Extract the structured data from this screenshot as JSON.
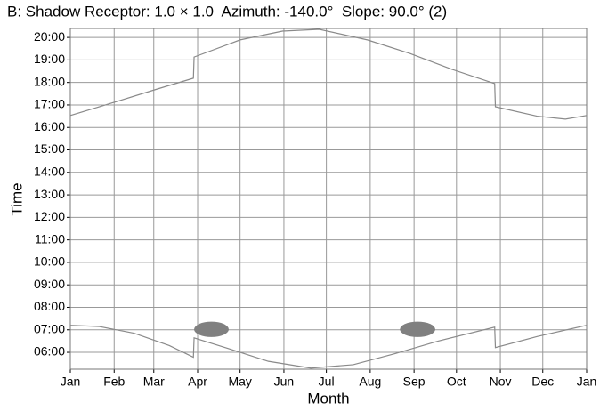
{
  "chart_data": {
    "type": "line",
    "title": "B: Shadow Receptor: 1.0 × 1.0  Azimuth: -140.0°  Slope: 90.0° (2)",
    "xlabel": "Month",
    "ylabel": "Time",
    "xlim": [
      0,
      365
    ],
    "xticks": [
      {
        "value": 0,
        "label": "Jan"
      },
      {
        "value": 31,
        "label": "Feb"
      },
      {
        "value": 59,
        "label": "Mar"
      },
      {
        "value": 90,
        "label": "Apr"
      },
      {
        "value": 120,
        "label": "May"
      },
      {
        "value": 151,
        "label": "Jun"
      },
      {
        "value": 181,
        "label": "Jul"
      },
      {
        "value": 212,
        "label": "Aug"
      },
      {
        "value": 243,
        "label": "Sep"
      },
      {
        "value": 273,
        "label": "Oct"
      },
      {
        "value": 304,
        "label": "Nov"
      },
      {
        "value": 334,
        "label": "Dec"
      },
      {
        "value": 365,
        "label": "Jan"
      }
    ],
    "ylim": [
      5.25,
      20.4
    ],
    "yticks": [
      {
        "value": 6,
        "label": "06:00"
      },
      {
        "value": 7,
        "label": "07:00"
      },
      {
        "value": 8,
        "label": "08:00"
      },
      {
        "value": 9,
        "label": "09:00"
      },
      {
        "value": 10,
        "label": "10:00"
      },
      {
        "value": 11,
        "label": "11:00"
      },
      {
        "value": 12,
        "label": "12:00"
      },
      {
        "value": 13,
        "label": "13:00"
      },
      {
        "value": 14,
        "label": "14:00"
      },
      {
        "value": 15,
        "label": "15:00"
      },
      {
        "value": 16,
        "label": "16:00"
      },
      {
        "value": 17,
        "label": "17:00"
      },
      {
        "value": 18,
        "label": "18:00"
      },
      {
        "value": 19,
        "label": "19:00"
      },
      {
        "value": 20,
        "label": "20:00"
      }
    ],
    "grid": true,
    "series": [
      {
        "color": "#8a8a8a",
        "x": [
          0,
          30,
          60,
          87,
          87.5,
          120,
          150,
          176,
          210,
          240,
          270,
          300,
          300.5,
          330,
          350,
          365
        ],
        "values": [
          16.53,
          17.1,
          17.68,
          18.19,
          19.13,
          19.89,
          20.28,
          20.36,
          19.89,
          19.29,
          18.58,
          17.95,
          16.92,
          16.5,
          16.37,
          16.53
        ]
      },
      {
        "color": "#8a8a8a",
        "x": [
          0,
          20,
          45,
          70,
          87,
          87.5,
          110,
          140,
          170,
          200,
          230,
          260,
          300,
          300.5,
          330,
          365
        ],
        "values": [
          7.2,
          7.15,
          6.85,
          6.3,
          5.78,
          6.64,
          6.2,
          5.6,
          5.3,
          5.45,
          5.95,
          6.5,
          7.12,
          6.21,
          6.7,
          7.2
        ]
      }
    ],
    "shadow_color": "#808080",
    "shadow_periods": [
      {
        "start": 87.5,
        "end": 112,
        "from": 6.68,
        "to": 7.36
      },
      {
        "start": 233,
        "end": 258,
        "from": 6.68,
        "to": 7.36
      }
    ]
  }
}
